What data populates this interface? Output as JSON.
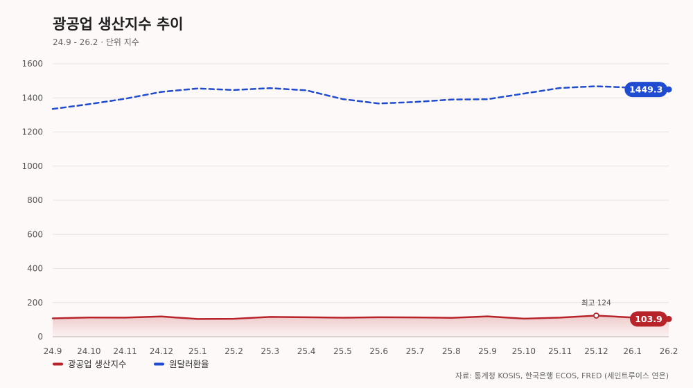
{
  "chart_data": {
    "type": "line",
    "title": "광공업 생산지수 추이",
    "subtitle": "24.9 - 26.2 · 단위 지수",
    "categories": [
      "24.9",
      "24.10",
      "24.11",
      "24.12",
      "25.1",
      "25.2",
      "25.3",
      "25.4",
      "25.5",
      "25.6",
      "25.7",
      "25.8",
      "25.9",
      "25.10",
      "25.11",
      "25.12",
      "26.1",
      "26.2"
    ],
    "yticks": [
      0,
      200,
      400,
      600,
      800,
      1000,
      1200,
      1400,
      1600
    ],
    "ylim": [
      0,
      1600
    ],
    "grid": true,
    "legend_position": "bottom-left",
    "series": [
      {
        "name": "광공업 생산지수",
        "color": "#b8232a",
        "style": "solid-area",
        "values": [
          107.5,
          113.0,
          112.0,
          118.5,
          104.0,
          105.0,
          116.0,
          114.0,
          111.5,
          114.0,
          113.5,
          111.0,
          119.5,
          106.0,
          112.0,
          124.0,
          113.0,
          103.9
        ],
        "end_label": "103.9"
      },
      {
        "name": "원달러환율",
        "color": "#1f4bd1",
        "style": "dashed",
        "values": [
          1335,
          1363,
          1395,
          1435,
          1455,
          1446,
          1457,
          1444,
          1393,
          1367,
          1376,
          1390,
          1392,
          1425,
          1458,
          1468,
          1460,
          1449.3
        ],
        "end_label": "1449.3"
      }
    ],
    "annotations": [
      {
        "series": 0,
        "index": 15,
        "text": "최고 124"
      }
    ],
    "source": "자료: 통계청 KOSIS, 한국은행 ECOS, FRED (세인트루이스 연은)"
  }
}
